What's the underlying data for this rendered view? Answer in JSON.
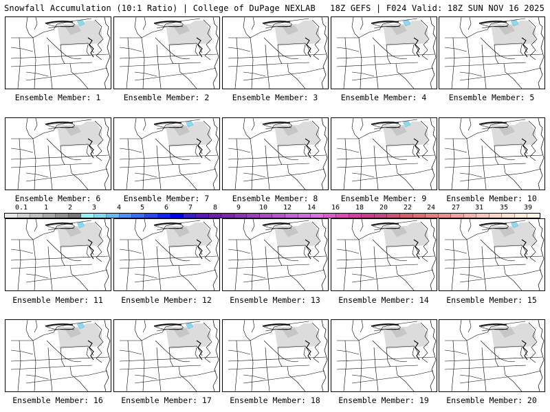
{
  "header": {
    "title_left": "Snowfall Accumulation (10:1 Ratio) | College of DuPage NEXLAB",
    "title_right": "18Z GEFS | F024 Valid: 18Z SUN NOV 16 2025"
  },
  "members": [
    {
      "label": "Ensemble Member: 1",
      "blue_spot": true
    },
    {
      "label": "Ensemble Member: 2",
      "blue_spot": false
    },
    {
      "label": "Ensemble Member: 3",
      "blue_spot": false
    },
    {
      "label": "Ensemble Member: 4",
      "blue_spot": true
    },
    {
      "label": "Ensemble Member: 5",
      "blue_spot": true
    },
    {
      "label": "Ensemble Member: 6",
      "blue_spot": false
    },
    {
      "label": "Ensemble Member: 7",
      "blue_spot": true
    },
    {
      "label": "Ensemble Member: 8",
      "blue_spot": false
    },
    {
      "label": "Ensemble Member: 9",
      "blue_spot": true
    },
    {
      "label": "Ensemble Member: 10",
      "blue_spot": false
    },
    {
      "label": "Ensemble Member: 11",
      "blue_spot": true
    },
    {
      "label": "Ensemble Member: 12",
      "blue_spot": false
    },
    {
      "label": "Ensemble Member: 13",
      "blue_spot": false
    },
    {
      "label": "Ensemble Member: 14",
      "blue_spot": false
    },
    {
      "label": "Ensemble Member: 15",
      "blue_spot": true
    },
    {
      "label": "Ensemble Member: 16",
      "blue_spot": true
    },
    {
      "label": "Ensemble Member: 17",
      "blue_spot": true
    },
    {
      "label": "Ensemble Member: 18",
      "blue_spot": false
    },
    {
      "label": "Ensemble Member: 19",
      "blue_spot": false
    },
    {
      "label": "Ensemble Member: 20",
      "blue_spot": false
    }
  ],
  "colorbar": {
    "labels": [
      "0.1",
      "1",
      "2",
      "3",
      "4",
      "5",
      "6",
      "7",
      "8",
      "9",
      "10",
      "12",
      "14",
      "16",
      "18",
      "20",
      "22",
      "24",
      "27",
      "31",
      "35",
      "39"
    ],
    "colors": [
      "#e6e6e6",
      "#d2d2d2",
      "#bebebe",
      "#a8a8a8",
      "#909090",
      "#787878",
      "#98f0f0",
      "#80d8f0",
      "#68b8f0",
      "#5090f0",
      "#3c6cf0",
      "#2848f0",
      "#1424f0",
      "#0000e8",
      "#3c1ec8",
      "#5a1ab8",
      "#6e20a8",
      "#7a28a8",
      "#8a34b0",
      "#9840b8",
      "#a84cc0",
      "#b458c8",
      "#c064d0",
      "#cc70d8",
      "#d870e0",
      "#d85cc8",
      "#d84cb4",
      "#d040a0",
      "#c8408c",
      "#c04880",
      "#c85478",
      "#d06070",
      "#d87070",
      "#e08080",
      "#e89090",
      "#f0a0a0",
      "#f0b4b4",
      "#f4c4c0",
      "#f8d4cc",
      "#fae0d4",
      "#fcecdc",
      "#fef4e8"
    ]
  }
}
